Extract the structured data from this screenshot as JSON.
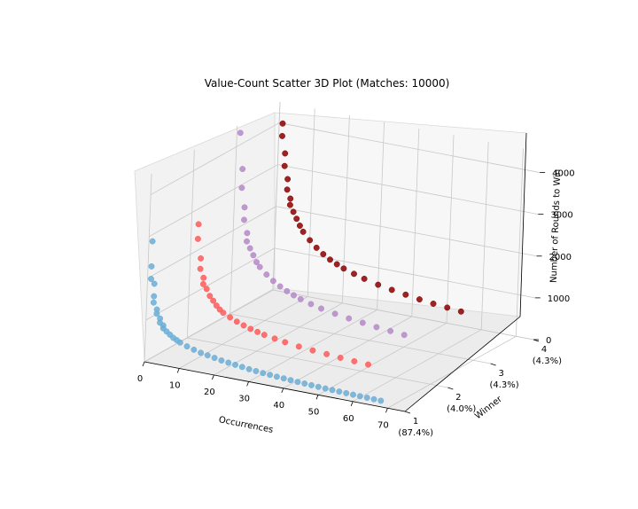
{
  "chart_data": {
    "type": "scatter",
    "projection": "3d",
    "title": "Value-Count Scatter 3D Plot (Matches: 10000)",
    "xlabel": "Occurrences",
    "ylabel": "Winner",
    "zlabel": "Number of Rounds to Win",
    "xlim": [
      0,
      75
    ],
    "zlim": [
      0,
      4500
    ],
    "x_ticks": [
      "0",
      "10",
      "20",
      "30",
      "40",
      "50",
      "60",
      "70"
    ],
    "y_ticks": [
      {
        "label": "1",
        "sub": "(87.4%)"
      },
      {
        "label": "2",
        "sub": "(4.0%)"
      },
      {
        "label": "3",
        "sub": "(4.3%)"
      },
      {
        "label": "4",
        "sub": "(4.3%)"
      }
    ],
    "z_ticks": [
      "0",
      "1000",
      "2000",
      "3000",
      "4000"
    ],
    "grid": true,
    "colors": {
      "winner_1": "#6baed6",
      "winner_2": "#ff5a5a",
      "winner_3": "#b48ac8",
      "winner_4": "#8b0000"
    },
    "series": [
      {
        "winner": 1,
        "points": [
          [
            1,
            2900
          ],
          [
            1,
            2300
          ],
          [
            1,
            2000
          ],
          [
            2,
            1900
          ],
          [
            2,
            1600
          ],
          [
            2,
            1450
          ],
          [
            3,
            1300
          ],
          [
            3,
            1200
          ],
          [
            4,
            1100
          ],
          [
            4,
            1000
          ],
          [
            5,
            950
          ],
          [
            5,
            880
          ],
          [
            6,
            820
          ],
          [
            7,
            760
          ],
          [
            8,
            700
          ],
          [
            9,
            660
          ],
          [
            10,
            620
          ],
          [
            12,
            560
          ],
          [
            14,
            510
          ],
          [
            16,
            470
          ],
          [
            18,
            440
          ],
          [
            20,
            410
          ],
          [
            22,
            380
          ],
          [
            24,
            360
          ],
          [
            26,
            340
          ],
          [
            28,
            320
          ],
          [
            30,
            300
          ],
          [
            32,
            285
          ],
          [
            34,
            270
          ],
          [
            36,
            258
          ],
          [
            38,
            246
          ],
          [
            40,
            236
          ],
          [
            42,
            226
          ],
          [
            44,
            216
          ],
          [
            46,
            208
          ],
          [
            48,
            200
          ],
          [
            50,
            192
          ],
          [
            52,
            186
          ],
          [
            54,
            180
          ],
          [
            56,
            174
          ],
          [
            58,
            168
          ],
          [
            60,
            163
          ],
          [
            62,
            158
          ],
          [
            64,
            154
          ],
          [
            66,
            150
          ],
          [
            68,
            146
          ]
        ]
      },
      {
        "winner": 2,
        "points": [
          [
            2,
            2750
          ],
          [
            2,
            2400
          ],
          [
            3,
            1950
          ],
          [
            3,
            1700
          ],
          [
            4,
            1500
          ],
          [
            4,
            1350
          ],
          [
            5,
            1250
          ],
          [
            6,
            1100
          ],
          [
            7,
            1000
          ],
          [
            8,
            900
          ],
          [
            9,
            820
          ],
          [
            10,
            760
          ],
          [
            12,
            680
          ],
          [
            14,
            610
          ],
          [
            16,
            550
          ],
          [
            18,
            500
          ],
          [
            20,
            460
          ],
          [
            22,
            420
          ],
          [
            25,
            380
          ],
          [
            28,
            340
          ],
          [
            32,
            300
          ],
          [
            36,
            270
          ],
          [
            40,
            245
          ],
          [
            44,
            220
          ],
          [
            48,
            200
          ],
          [
            52,
            185
          ]
        ]
      },
      {
        "winner": 3,
        "points": [
          [
            1,
            4350
          ],
          [
            2,
            3500
          ],
          [
            2,
            3050
          ],
          [
            3,
            2600
          ],
          [
            3,
            2300
          ],
          [
            4,
            2000
          ],
          [
            4,
            1800
          ],
          [
            5,
            1650
          ],
          [
            6,
            1500
          ],
          [
            7,
            1350
          ],
          [
            8,
            1250
          ],
          [
            10,
            1100
          ],
          [
            12,
            980
          ],
          [
            14,
            880
          ],
          [
            16,
            800
          ],
          [
            18,
            730
          ],
          [
            20,
            670
          ],
          [
            23,
            600
          ],
          [
            26,
            540
          ],
          [
            30,
            480
          ],
          [
            34,
            430
          ],
          [
            38,
            390
          ],
          [
            42,
            350
          ],
          [
            46,
            320
          ],
          [
            50,
            290
          ]
        ]
      },
      {
        "winner": 4,
        "points": [
          [
            1,
            4000
          ],
          [
            1,
            3700
          ],
          [
            2,
            3300
          ],
          [
            2,
            3000
          ],
          [
            3,
            2700
          ],
          [
            3,
            2450
          ],
          [
            4,
            2250
          ],
          [
            4,
            2100
          ],
          [
            5,
            1950
          ],
          [
            6,
            1800
          ],
          [
            7,
            1650
          ],
          [
            8,
            1520
          ],
          [
            10,
            1350
          ],
          [
            12,
            1200
          ],
          [
            14,
            1080
          ],
          [
            16,
            980
          ],
          [
            18,
            900
          ],
          [
            20,
            830
          ],
          [
            23,
            750
          ],
          [
            26,
            680
          ],
          [
            30,
            600
          ],
          [
            34,
            540
          ],
          [
            38,
            490
          ],
          [
            42,
            440
          ],
          [
            46,
            400
          ],
          [
            50,
            370
          ],
          [
            54,
            340
          ]
        ]
      }
    ]
  }
}
